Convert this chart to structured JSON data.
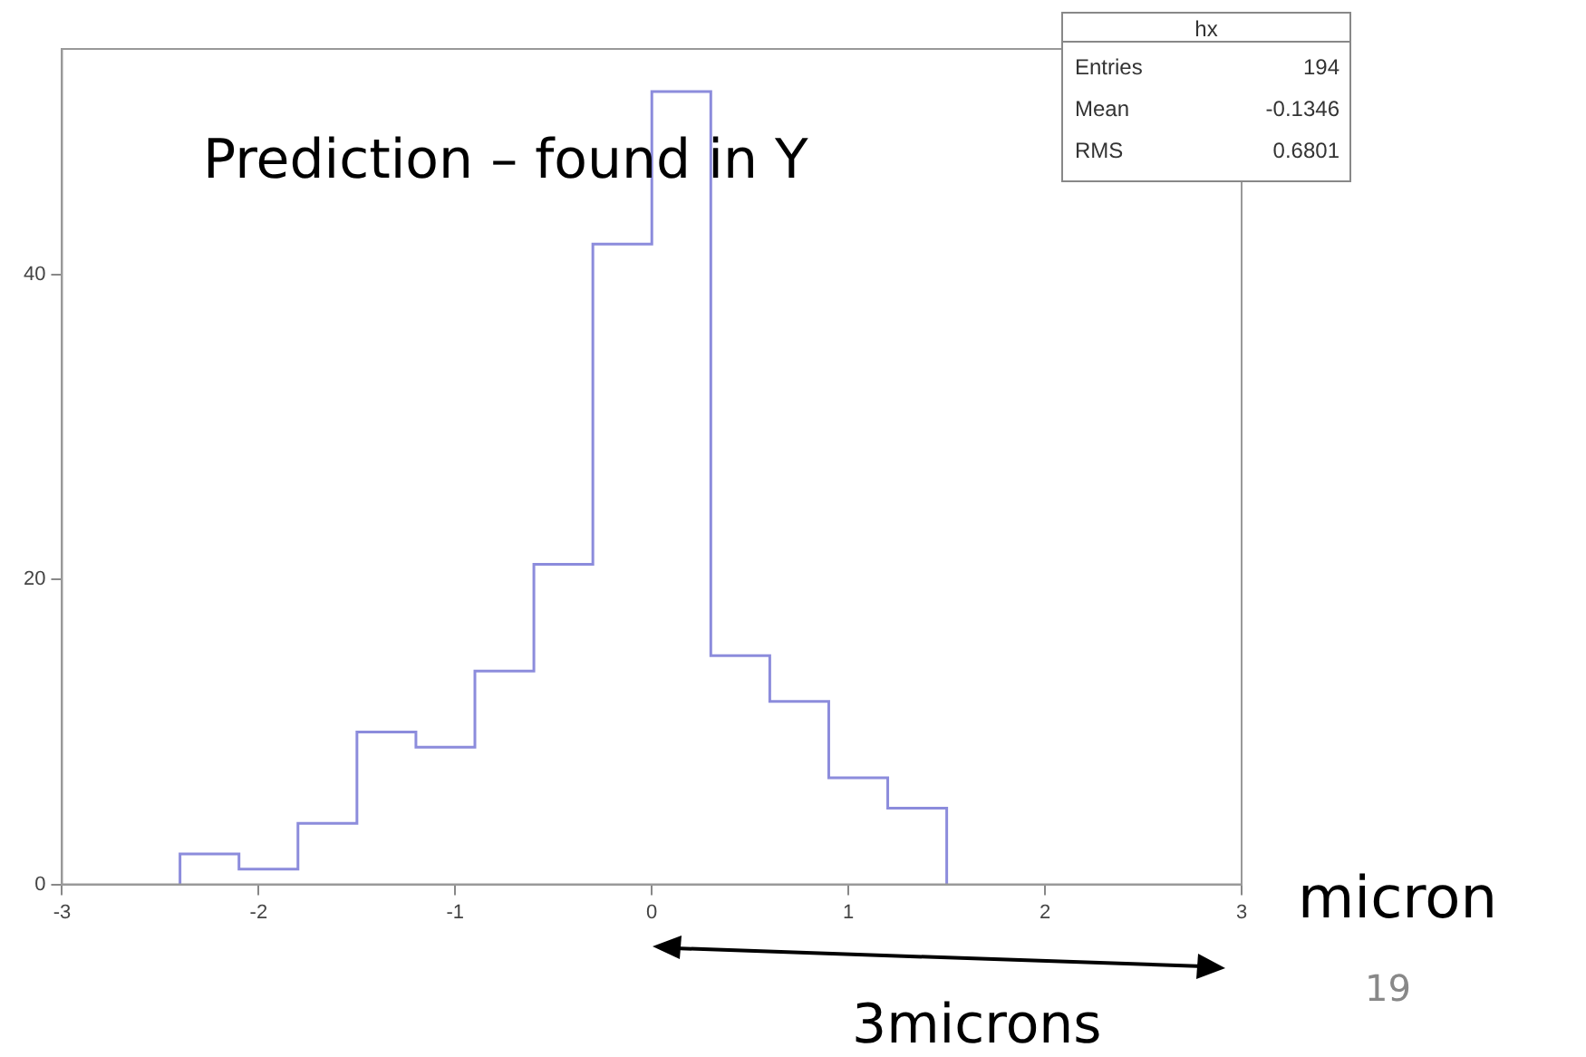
{
  "chart_data": {
    "type": "histogram",
    "title": "Prediction – found in Y",
    "xlabel": "micron",
    "bins": [
      -2.4,
      -2.1,
      -1.8,
      -1.5,
      -1.2,
      -0.9,
      -0.6,
      -0.3,
      0,
      0.3,
      0.6,
      0.9,
      1.2,
      1.5
    ],
    "values": [
      2,
      1,
      4,
      10,
      9,
      14,
      21,
      42,
      52,
      15,
      12,
      7,
      5
    ],
    "color": "#8c8cdc",
    "xlim": [
      -3,
      3
    ],
    "xticks": [
      -3,
      -2,
      -1,
      0,
      1,
      2,
      3
    ],
    "ylim": [
      0,
      54.8
    ],
    "yticks": [
      0,
      20,
      40
    ],
    "grid": false,
    "annotations": [
      "hx",
      "Entries 194",
      "Mean -0.1346",
      "RMS 0.6801",
      "3microns",
      "19"
    ]
  }
}
